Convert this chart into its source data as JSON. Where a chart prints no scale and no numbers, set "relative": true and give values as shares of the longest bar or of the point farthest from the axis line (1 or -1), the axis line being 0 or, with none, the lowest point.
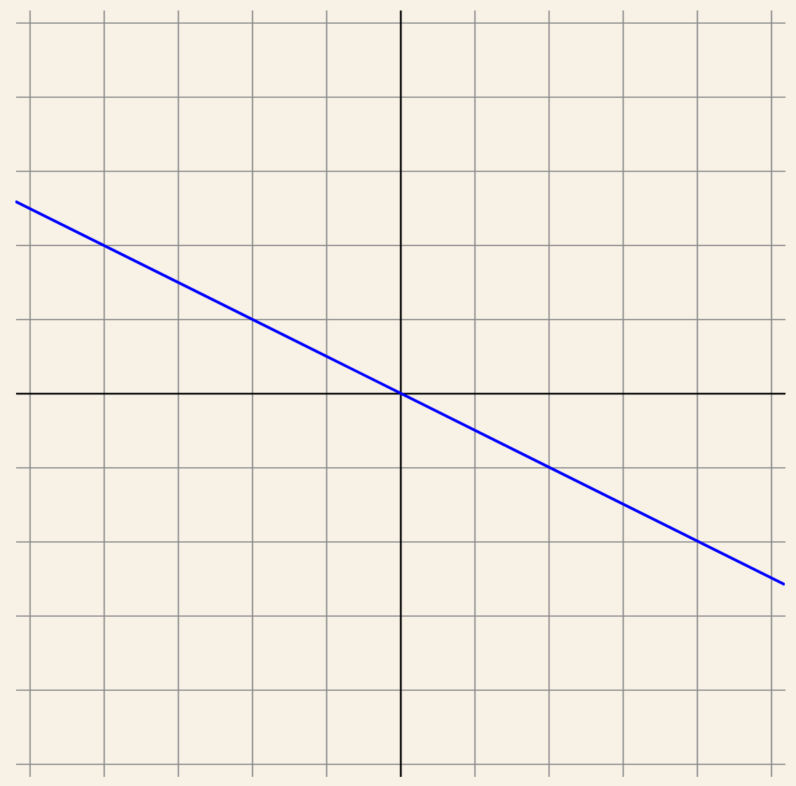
{
  "chart_data": {
    "type": "line",
    "relative": true,
    "categories": [
      null,
      null,
      null
    ],
    "series": [
      {
        "color": "#0000ff",
        "values": [
          1,
          0,
          -1
        ]
      }
    ],
    "grid": true
  }
}
